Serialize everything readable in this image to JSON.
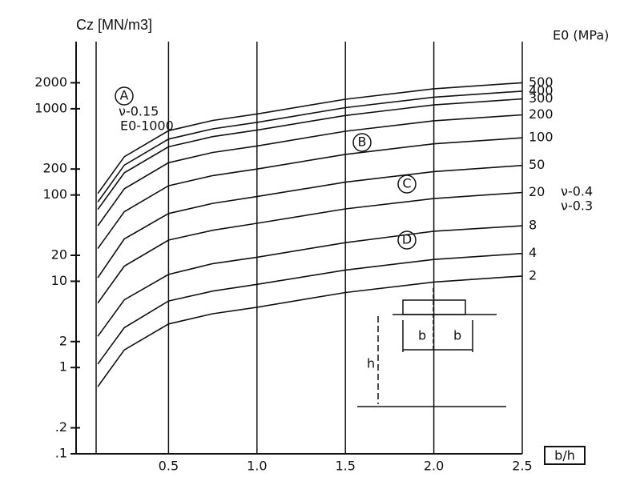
{
  "chart_data": {
    "type": "line",
    "y_label": "Cz [MN/m3]",
    "legend_title": "E0 (MPa)",
    "x_label": "b/h",
    "x": [
      0.1,
      0.25,
      0.5,
      0.75,
      1.0,
      1.5,
      2.0,
      2.5
    ],
    "series": [
      {
        "name": "500",
        "color": "#111111",
        "values": [
          104,
          278,
          557,
          731,
          870,
          1288,
          1705,
          2000
        ]
      },
      {
        "name": "400",
        "color": "#111111",
        "values": [
          83,
          222,
          445,
          584,
          695,
          1029,
          1362,
          1600
        ]
      },
      {
        "name": "300",
        "color": "#111111",
        "values": [
          68,
          181,
          362,
          475,
          565,
          836,
          1107,
          1300
        ]
      },
      {
        "name": "200",
        "color": "#111111",
        "values": [
          44,
          118,
          237,
          311,
          370,
          548,
          725,
          850
        ]
      },
      {
        "name": "100",
        "color": "#111111",
        "values": [
          24,
          64,
          128,
          168,
          200,
          296,
          392,
          460
        ]
      },
      {
        "name": "50",
        "color": "#111111",
        "values": [
          11,
          31,
          61,
          80,
          96,
          141,
          187,
          220
        ]
      },
      {
        "name": "20",
        "color": "#111111",
        "values": [
          5.6,
          15,
          30,
          39,
          47,
          69,
          91,
          107
        ]
      },
      {
        "name": "8",
        "color": "#111111",
        "values": [
          2.3,
          6.1,
          12,
          16,
          19,
          28,
          38,
          44
        ]
      },
      {
        "name": "4",
        "color": "#111111",
        "values": [
          1.1,
          2.9,
          5.9,
          7.7,
          9.2,
          13.5,
          17.9,
          21
        ]
      },
      {
        "name": "2",
        "color": "#111111",
        "values": [
          0.6,
          1.6,
          3.2,
          4.2,
          5,
          7.4,
          9.8,
          11.5
        ]
      }
    ],
    "xlim": [
      0,
      2.5
    ],
    "xticks": [
      0.5,
      {
        "value": 1,
        "label": "1.0"
      },
      1.5,
      {
        "value": 2,
        "label": "2.0"
      },
      2.5
    ],
    "ylim": [
      0.1,
      6000
    ],
    "yticks": [
      {
        "value": 0.1,
        "label": ".1"
      },
      {
        "value": 0.2,
        "label": ".2"
      },
      1,
      2,
      10,
      20,
      100,
      200,
      1000,
      2000
    ],
    "log_y": true,
    "grid": true,
    "annotations": [
      "A",
      "ν-0.15",
      "E0-1000",
      "B",
      "C",
      "D",
      "ν-0.4",
      "ν-0.3",
      "b",
      "b",
      "h"
    ]
  }
}
